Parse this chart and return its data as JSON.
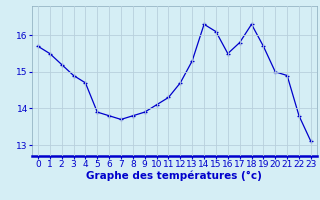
{
  "hours": [
    0,
    1,
    2,
    3,
    4,
    5,
    6,
    7,
    8,
    9,
    10,
    11,
    12,
    13,
    14,
    15,
    16,
    17,
    18,
    19,
    20,
    21,
    22,
    23
  ],
  "temps": [
    15.7,
    15.5,
    15.2,
    14.9,
    14.7,
    13.9,
    13.8,
    13.7,
    13.8,
    13.9,
    14.1,
    14.3,
    14.7,
    15.3,
    16.3,
    16.1,
    15.5,
    15.8,
    16.3,
    15.7,
    15.0,
    14.9,
    13.8,
    13.1
  ],
  "line_color": "#0000cc",
  "marker": "+",
  "bg_color": "#d5eef5",
  "grid_color": "#b8d0dc",
  "axis_color": "#0000cc",
  "xlabel": "Graphe des températures (°c)",
  "ylim": [
    12.7,
    16.8
  ],
  "yticks": [
    13,
    14,
    15,
    16
  ],
  "xticks": [
    0,
    1,
    2,
    3,
    4,
    5,
    6,
    7,
    8,
    9,
    10,
    11,
    12,
    13,
    14,
    15,
    16,
    17,
    18,
    19,
    20,
    21,
    22,
    23
  ],
  "xlabel_fontsize": 7.5,
  "tick_fontsize": 6.5,
  "xlabel_bold": true,
  "figsize": [
    3.2,
    2.0
  ],
  "dpi": 100
}
